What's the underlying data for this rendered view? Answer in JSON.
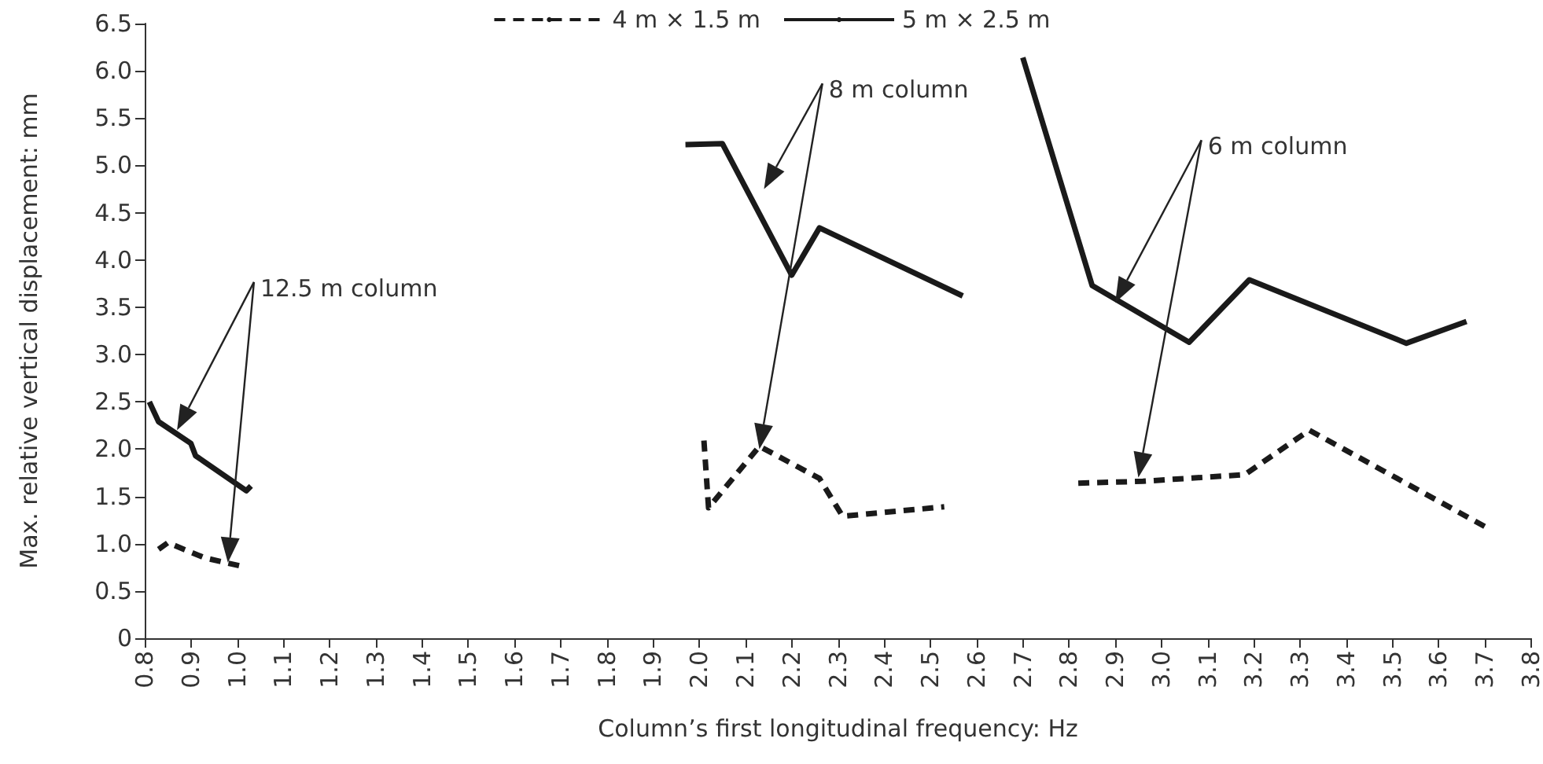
{
  "chart_data": {
    "type": "line",
    "xlabel": "Column’s first longitudinal frequency: Hz",
    "ylabel": "Max. relative vertical displacement: mm",
    "xlim": [
      0.8,
      3.8
    ],
    "xticks": [
      0.8,
      0.9,
      {
        "value": 1.0,
        "label": "1.0"
      },
      1.1,
      1.2,
      1.3,
      1.4,
      1.5,
      1.6,
      1.7,
      1.8,
      1.9,
      {
        "value": 2.0,
        "label": "2.0"
      },
      2.1,
      2.2,
      2.3,
      2.4,
      2.5,
      2.6,
      2.7,
      2.8,
      2.9,
      {
        "value": 3.0,
        "label": "3.0"
      },
      3.1,
      3.2,
      3.3,
      3.4,
      3.5,
      3.6,
      3.7,
      3.8
    ],
    "ylim": [
      0,
      6.5
    ],
    "yticks": [
      0,
      0.5,
      {
        "value": 1.0,
        "label": "1.0"
      },
      1.5,
      {
        "value": 2.0,
        "label": "2.0"
      },
      2.5,
      {
        "value": 3.0,
        "label": "3.0"
      },
      3.5,
      {
        "value": 4.0,
        "label": "4.0"
      },
      4.5,
      {
        "value": 5.0,
        "label": "5.0"
      },
      5.5,
      {
        "value": 6.0,
        "label": "6.0"
      },
      6.5
    ],
    "series": [
      {
        "name": "4 m × 1.5 m",
        "color": "#1a1a1a",
        "line_style": "dashed",
        "x": [
          0.83,
          0.85,
          0.93,
          1.02,
          null,
          2.01,
          2.02,
          2.13,
          2.26,
          2.31,
          2.53,
          null,
          2.82,
          2.96,
          3.18,
          3.32,
          3.7
        ],
        "values": [
          0.94,
          1.01,
          0.85,
          0.75,
          null,
          2.09,
          1.38,
          2.03,
          1.69,
          1.29,
          1.39,
          null,
          1.64,
          1.66,
          1.73,
          2.2,
          1.18
        ]
      },
      {
        "name": "5 m × 2.5 m",
        "color": "#1a1a1a",
        "line_style": "solid",
        "x": [
          0.81,
          0.83,
          0.9,
          0.91,
          1.02,
          1.03,
          null,
          1.97,
          2.05,
          2.2,
          2.26,
          2.57,
          null,
          2.7,
          2.85,
          3.06,
          3.19,
          3.53,
          3.66
        ],
        "values": [
          2.5,
          2.29,
          2.06,
          1.93,
          1.56,
          1.61,
          null,
          5.22,
          5.23,
          3.84,
          4.34,
          3.62,
          null,
          6.14,
          3.73,
          3.13,
          3.79,
          3.12,
          3.35
        ]
      }
    ],
    "annotations": [
      "12.5 m column",
      "8 m column",
      "6 m column"
    ],
    "grid": false,
    "legend": "top",
    "marker": "none"
  }
}
